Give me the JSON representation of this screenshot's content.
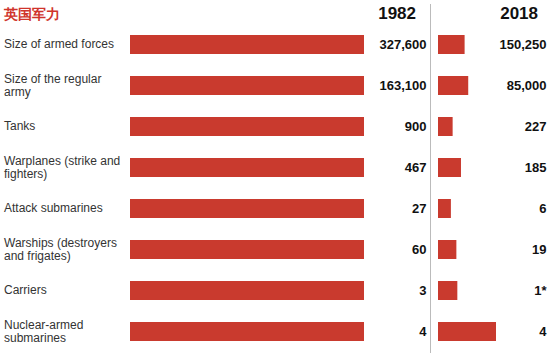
{
  "chart_data": {
    "type": "pictogram",
    "title": "英国军力",
    "orientation": "horizontal",
    "data_labels": true,
    "tick_labels": "y",
    "color": "#c93a2e",
    "categories": [
      "Size of armed forces",
      "Size of the regular army",
      "Tanks",
      "Warplanes (strike and fighters)",
      "Attack submarines",
      "Warships (destroyers and frigates)",
      "Carriers",
      "Nuclear-armed submarines"
    ],
    "series": [
      {
        "name": "1982",
        "values": [
          327600,
          163100,
          900,
          467,
          27,
          60,
          3,
          4
        ],
        "value_labels": [
          "327,600",
          "163,100",
          "900",
          "467",
          "27",
          "60",
          "3",
          "4"
        ]
      },
      {
        "name": "2018",
        "values": [
          150250,
          85000,
          227,
          185,
          6,
          19,
          1,
          4
        ],
        "value_labels": [
          "150,250",
          "85,000",
          "227",
          "185",
          "6",
          "19",
          "1*",
          "4"
        ]
      }
    ]
  }
}
